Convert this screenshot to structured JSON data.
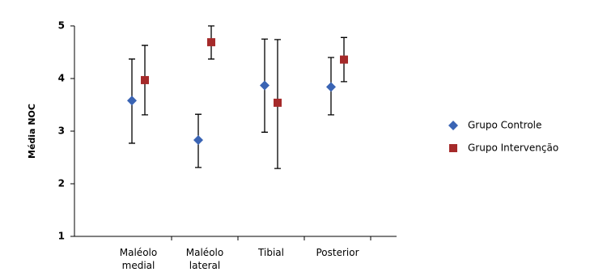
{
  "chart_data": {
    "type": "errorbar",
    "y_label": "Média NOC",
    "categories": [
      [
        "Maléolo",
        "medial"
      ],
      [
        "Maléolo",
        "lateral"
      ],
      [
        "Tibial"
      ],
      [
        "Posterior"
      ]
    ],
    "series": [
      {
        "name": "Grupo Controle",
        "color": "#3a64b4",
        "marker": "diamond",
        "values": [
          3.58,
          2.83,
          3.87,
          3.84
        ],
        "low": [
          2.77,
          2.31,
          2.98,
          3.31
        ],
        "high": [
          4.37,
          3.32,
          4.75,
          4.4
        ]
      },
      {
        "name": "Grupo Intervenção",
        "color": "#a52a2a",
        "marker": "square",
        "values": [
          3.97,
          4.69,
          3.54,
          4.36
        ],
        "low": [
          3.31,
          4.37,
          2.29,
          3.94
        ],
        "high": [
          4.63,
          5.0,
          4.74,
          4.78
        ]
      }
    ],
    "ylim": [
      1,
      5
    ],
    "yticks": [
      1,
      2,
      3,
      4,
      5
    ],
    "grid": false,
    "legend": "right"
  }
}
